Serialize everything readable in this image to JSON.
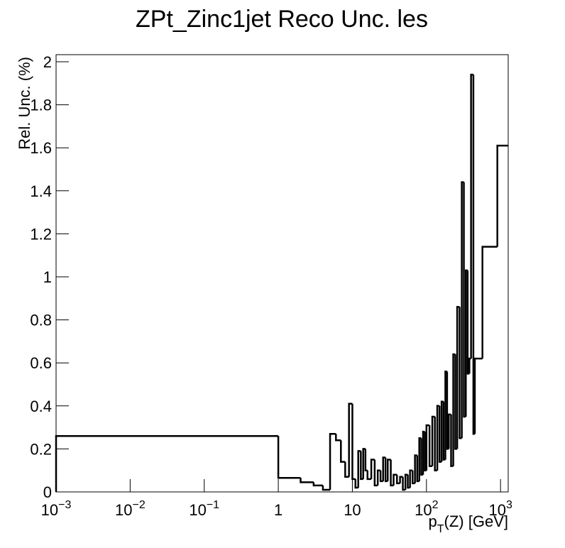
{
  "chart_data": {
    "type": "histogram",
    "title": "ZPt_Zinc1jet Reco Unc. les",
    "x_label": {
      "main": "p",
      "sub": "T",
      "rest": "(Z) [GeV]"
    },
    "y_label": "Rel. Unc. (%)",
    "xscale": "log",
    "xlim": [
      0.001,
      1270
    ],
    "ylim": [
      0,
      2.033
    ],
    "xticks": [
      {
        "value": 0.001,
        "label": "10",
        "exponent": "−3"
      },
      {
        "value": 0.01,
        "label": "10",
        "exponent": "−2"
      },
      {
        "value": 0.1,
        "label": "10",
        "exponent": "−1"
      },
      1,
      10,
      {
        "value": 100,
        "label": "10",
        "exponent": "2"
      },
      {
        "value": 1000,
        "label": "10",
        "exponent": "3"
      }
    ],
    "yticks": [
      0,
      0.2,
      0.4,
      0.6,
      0.8,
      1,
      1.2,
      1.4,
      1.6,
      1.8,
      2
    ],
    "color": "#000000",
    "bins": [
      0.001,
      1,
      2,
      3,
      4,
      5,
      6,
      7,
      8,
      9,
      10,
      11,
      12,
      13,
      14,
      15,
      16,
      18,
      20,
      22,
      24,
      26,
      28,
      30,
      33,
      36,
      40,
      44,
      48,
      52,
      56,
      60,
      65,
      70,
      75,
      80,
      85,
      90,
      95,
      100,
      110,
      120,
      130,
      140,
      150,
      160,
      170,
      180,
      190,
      200,
      215,
      230,
      245,
      260,
      280,
      300,
      320,
      340,
      360,
      380,
      400,
      430,
      450,
      500,
      570,
      906,
      1270
    ],
    "values": [
      0.26,
      0.065,
      0.045,
      0.03,
      0.01,
      0.27,
      0.24,
      0.14,
      0.07,
      0.41,
      0.06,
      0.02,
      0.19,
      0.06,
      0.2,
      0.1,
      0.06,
      0.15,
      0.03,
      0.1,
      0.05,
      0.16,
      0.05,
      0.15,
      0.03,
      0.08,
      0.04,
      0.07,
      0.01,
      0.08,
      0.02,
      0.1,
      0.04,
      0.17,
      0.05,
      0.25,
      0.08,
      0.28,
      0.1,
      0.31,
      0.12,
      0.35,
      0.1,
      0.4,
      0.14,
      0.42,
      0.15,
      0.56,
      0.2,
      0.36,
      0.12,
      0.64,
      0.2,
      0.86,
      0.25,
      1.44,
      0.35,
      1.03,
      0.55,
      0.62,
      1.94,
      0.27,
      0.62,
      0.62,
      1.14,
      1.61
    ]
  }
}
